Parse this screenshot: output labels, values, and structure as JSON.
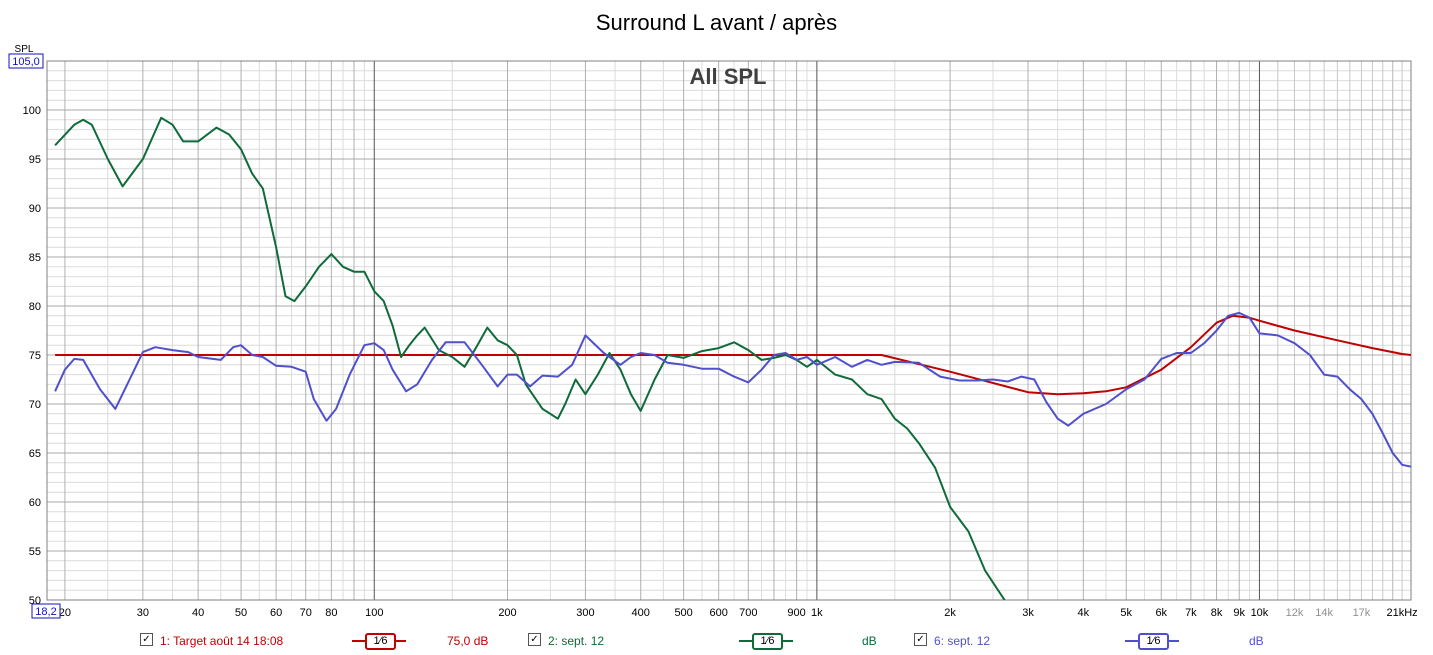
{
  "title": "Surround L avant / après",
  "chart_data": {
    "type": "line",
    "title": "Surround L avant / après",
    "subtitle": "All SPL",
    "ylabel": "SPL",
    "xlabel": "",
    "x_scale": "log",
    "xlim": [
      18.22,
      22000
    ],
    "ylim": [
      50,
      105
    ],
    "y_top_label": "105,0",
    "x_left_label": "18,2",
    "y_ticks": [
      50,
      55,
      60,
      65,
      70,
      75,
      80,
      85,
      90,
      95,
      100
    ],
    "x_ticks": [
      {
        "v": 20,
        "label": "20"
      },
      {
        "v": 30,
        "label": "30"
      },
      {
        "v": 40,
        "label": "40"
      },
      {
        "v": 50,
        "label": "50"
      },
      {
        "v": 60,
        "label": "60"
      },
      {
        "v": 70,
        "label": "70"
      },
      {
        "v": 80,
        "label": "80"
      },
      {
        "v": 100,
        "label": "100"
      },
      {
        "v": 200,
        "label": "200"
      },
      {
        "v": 300,
        "label": "300"
      },
      {
        "v": 400,
        "label": "400"
      },
      {
        "v": 500,
        "label": "500"
      },
      {
        "v": 600,
        "label": "600"
      },
      {
        "v": 700,
        "label": "700"
      },
      {
        "v": 900,
        "label": "900"
      },
      {
        "v": 1000,
        "label": "1k"
      },
      {
        "v": 2000,
        "label": "2k"
      },
      {
        "v": 3000,
        "label": "3k"
      },
      {
        "v": 4000,
        "label": "4k"
      },
      {
        "v": 5000,
        "label": "5k"
      },
      {
        "v": 6000,
        "label": "6k"
      },
      {
        "v": 7000,
        "label": "7k"
      },
      {
        "v": 8000,
        "label": "8k"
      },
      {
        "v": 9000,
        "label": "9k"
      },
      {
        "v": 10000,
        "label": "10k"
      },
      {
        "v": 12000,
        "label": "12k"
      },
      {
        "v": 14000,
        "label": "14k"
      },
      {
        "v": 17000,
        "label": "17k"
      },
      {
        "v": 21000,
        "label": "21kHz"
      }
    ],
    "grid": true,
    "series": [
      {
        "name": "1: Target août 14 18:08",
        "color": "#c00000",
        "legend_value": "75,0 dB",
        "smoothing": "1⁄6",
        "points": [
          [
            19,
            75
          ],
          [
            100,
            75
          ],
          [
            1000,
            75
          ],
          [
            1400,
            75
          ],
          [
            2000,
            73.3
          ],
          [
            3000,
            71.2
          ],
          [
            3500,
            71
          ],
          [
            4000,
            71.1
          ],
          [
            4500,
            71.3
          ],
          [
            5000,
            71.7
          ],
          [
            6000,
            73.5
          ],
          [
            7000,
            75.8
          ],
          [
            8000,
            78.3
          ],
          [
            8700,
            79
          ],
          [
            9500,
            78.8
          ],
          [
            10000,
            78.5
          ],
          [
            12000,
            77.5
          ],
          [
            15000,
            76.5
          ],
          [
            18000,
            75.7
          ],
          [
            21000,
            75.1
          ],
          [
            22000,
            75
          ]
        ]
      },
      {
        "name": "2: sept. 12",
        "color": "#0f6b3a",
        "legend_value": "dB",
        "smoothing": "1⁄6",
        "points": [
          [
            19,
            96.4
          ],
          [
            21,
            98.5
          ],
          [
            22,
            99
          ],
          [
            23,
            98.5
          ],
          [
            25,
            95
          ],
          [
            27,
            92.2
          ],
          [
            30,
            95
          ],
          [
            33,
            99.2
          ],
          [
            35,
            98.5
          ],
          [
            37,
            96.8
          ],
          [
            40,
            96.8
          ],
          [
            44,
            98.2
          ],
          [
            47,
            97.5
          ],
          [
            50,
            96
          ],
          [
            53,
            93.5
          ],
          [
            56,
            92
          ],
          [
            60,
            86
          ],
          [
            63,
            81
          ],
          [
            66,
            80.5
          ],
          [
            70,
            82
          ],
          [
            75,
            84
          ],
          [
            80,
            85.3
          ],
          [
            85,
            84
          ],
          [
            90,
            83.5
          ],
          [
            95,
            83.5
          ],
          [
            100,
            81.5
          ],
          [
            105,
            80.5
          ],
          [
            110,
            78
          ],
          [
            115,
            74.8
          ],
          [
            120,
            76
          ],
          [
            125,
            77
          ],
          [
            130,
            77.8
          ],
          [
            140,
            75.5
          ],
          [
            150,
            74.8
          ],
          [
            160,
            73.8
          ],
          [
            170,
            75.8
          ],
          [
            180,
            77.8
          ],
          [
            190,
            76.5
          ],
          [
            200,
            76
          ],
          [
            210,
            75
          ],
          [
            220,
            72
          ],
          [
            240,
            69.5
          ],
          [
            260,
            68.5
          ],
          [
            270,
            70
          ],
          [
            285,
            72.5
          ],
          [
            300,
            71
          ],
          [
            320,
            73
          ],
          [
            340,
            75.2
          ],
          [
            360,
            73.5
          ],
          [
            380,
            71
          ],
          [
            400,
            69.3
          ],
          [
            430,
            72.5
          ],
          [
            460,
            75
          ],
          [
            500,
            74.7
          ],
          [
            550,
            75.4
          ],
          [
            600,
            75.7
          ],
          [
            650,
            76.3
          ],
          [
            700,
            75.5
          ],
          [
            750,
            74.5
          ],
          [
            800,
            74.7
          ],
          [
            850,
            75
          ],
          [
            900,
            74.5
          ],
          [
            950,
            73.8
          ],
          [
            1000,
            74.5
          ],
          [
            1100,
            73
          ],
          [
            1200,
            72.5
          ],
          [
            1300,
            71
          ],
          [
            1400,
            70.5
          ],
          [
            1500,
            68.5
          ],
          [
            1600,
            67.5
          ],
          [
            1700,
            66
          ],
          [
            1850,
            63.5
          ],
          [
            2000,
            59.5
          ],
          [
            2200,
            57
          ],
          [
            2400,
            53
          ],
          [
            2700,
            49.5
          ]
        ]
      },
      {
        "name": "6: sept. 12",
        "color": "#5050cc",
        "legend_value": "dB",
        "smoothing": "1⁄6",
        "points": [
          [
            19,
            71.3
          ],
          [
            20,
            73.5
          ],
          [
            21,
            74.6
          ],
          [
            22,
            74.5
          ],
          [
            24,
            71.5
          ],
          [
            26,
            69.5
          ],
          [
            28,
            72.5
          ],
          [
            30,
            75.3
          ],
          [
            32,
            75.8
          ],
          [
            35,
            75.5
          ],
          [
            38,
            75.3
          ],
          [
            40,
            74.8
          ],
          [
            45,
            74.5
          ],
          [
            48,
            75.8
          ],
          [
            50,
            76
          ],
          [
            53,
            75
          ],
          [
            56,
            74.8
          ],
          [
            60,
            73.9
          ],
          [
            65,
            73.8
          ],
          [
            70,
            73.3
          ],
          [
            73,
            70.5
          ],
          [
            78,
            68.3
          ],
          [
            82,
            69.5
          ],
          [
            88,
            73
          ],
          [
            95,
            76
          ],
          [
            100,
            76.2
          ],
          [
            105,
            75.5
          ],
          [
            110,
            73.5
          ],
          [
            118,
            71.3
          ],
          [
            125,
            72
          ],
          [
            135,
            74.5
          ],
          [
            145,
            76.3
          ],
          [
            160,
            76.3
          ],
          [
            175,
            74
          ],
          [
            190,
            71.8
          ],
          [
            200,
            73
          ],
          [
            210,
            73
          ],
          [
            225,
            71.8
          ],
          [
            240,
            72.9
          ],
          [
            260,
            72.8
          ],
          [
            280,
            74
          ],
          [
            300,
            77
          ],
          [
            330,
            75.2
          ],
          [
            360,
            74
          ],
          [
            380,
            74.8
          ],
          [
            400,
            75.2
          ],
          [
            430,
            75
          ],
          [
            460,
            74.2
          ],
          [
            500,
            74
          ],
          [
            550,
            73.6
          ],
          [
            600,
            73.6
          ],
          [
            650,
            72.8
          ],
          [
            700,
            72.2
          ],
          [
            750,
            73.5
          ],
          [
            800,
            75
          ],
          [
            850,
            75.2
          ],
          [
            900,
            74.5
          ],
          [
            950,
            74.8
          ],
          [
            1000,
            74
          ],
          [
            1100,
            74.8
          ],
          [
            1200,
            73.8
          ],
          [
            1300,
            74.5
          ],
          [
            1400,
            74
          ],
          [
            1500,
            74.3
          ],
          [
            1700,
            74.2
          ],
          [
            1900,
            72.8
          ],
          [
            2100,
            72.4
          ],
          [
            2300,
            72.4
          ],
          [
            2500,
            72.5
          ],
          [
            2700,
            72.3
          ],
          [
            2900,
            72.8
          ],
          [
            3100,
            72.5
          ],
          [
            3300,
            70.2
          ],
          [
            3500,
            68.5
          ],
          [
            3700,
            67.8
          ],
          [
            4000,
            69
          ],
          [
            4500,
            70
          ],
          [
            5000,
            71.5
          ],
          [
            5500,
            72.5
          ],
          [
            6000,
            74.6
          ],
          [
            6500,
            75.2
          ],
          [
            7000,
            75.2
          ],
          [
            7500,
            76.2
          ],
          [
            8000,
            77.5
          ],
          [
            8500,
            79
          ],
          [
            9000,
            79.3
          ],
          [
            9500,
            78.8
          ],
          [
            10000,
            77.2
          ],
          [
            11000,
            77
          ],
          [
            12000,
            76.2
          ],
          [
            13000,
            75
          ],
          [
            14000,
            73
          ],
          [
            15000,
            72.8
          ],
          [
            16000,
            71.5
          ],
          [
            17000,
            70.5
          ],
          [
            18000,
            69
          ],
          [
            19000,
            67
          ],
          [
            20000,
            65
          ],
          [
            21000,
            63.8
          ],
          [
            22000,
            63.6
          ]
        ]
      }
    ]
  },
  "legend": [
    {
      "checked": "✓",
      "label": "1: Target août 14 18:08",
      "smoothing": "1⁄6",
      "value": "75,0 dB",
      "color": "#c00000"
    },
    {
      "checked": "✓",
      "label": "2: sept. 12",
      "smoothing": "1⁄6",
      "value": "dB",
      "color": "#0f6b3a"
    },
    {
      "checked": "✓",
      "label": "6: sept. 12",
      "smoothing": "1⁄6",
      "value": "dB",
      "color": "#5050cc"
    }
  ]
}
